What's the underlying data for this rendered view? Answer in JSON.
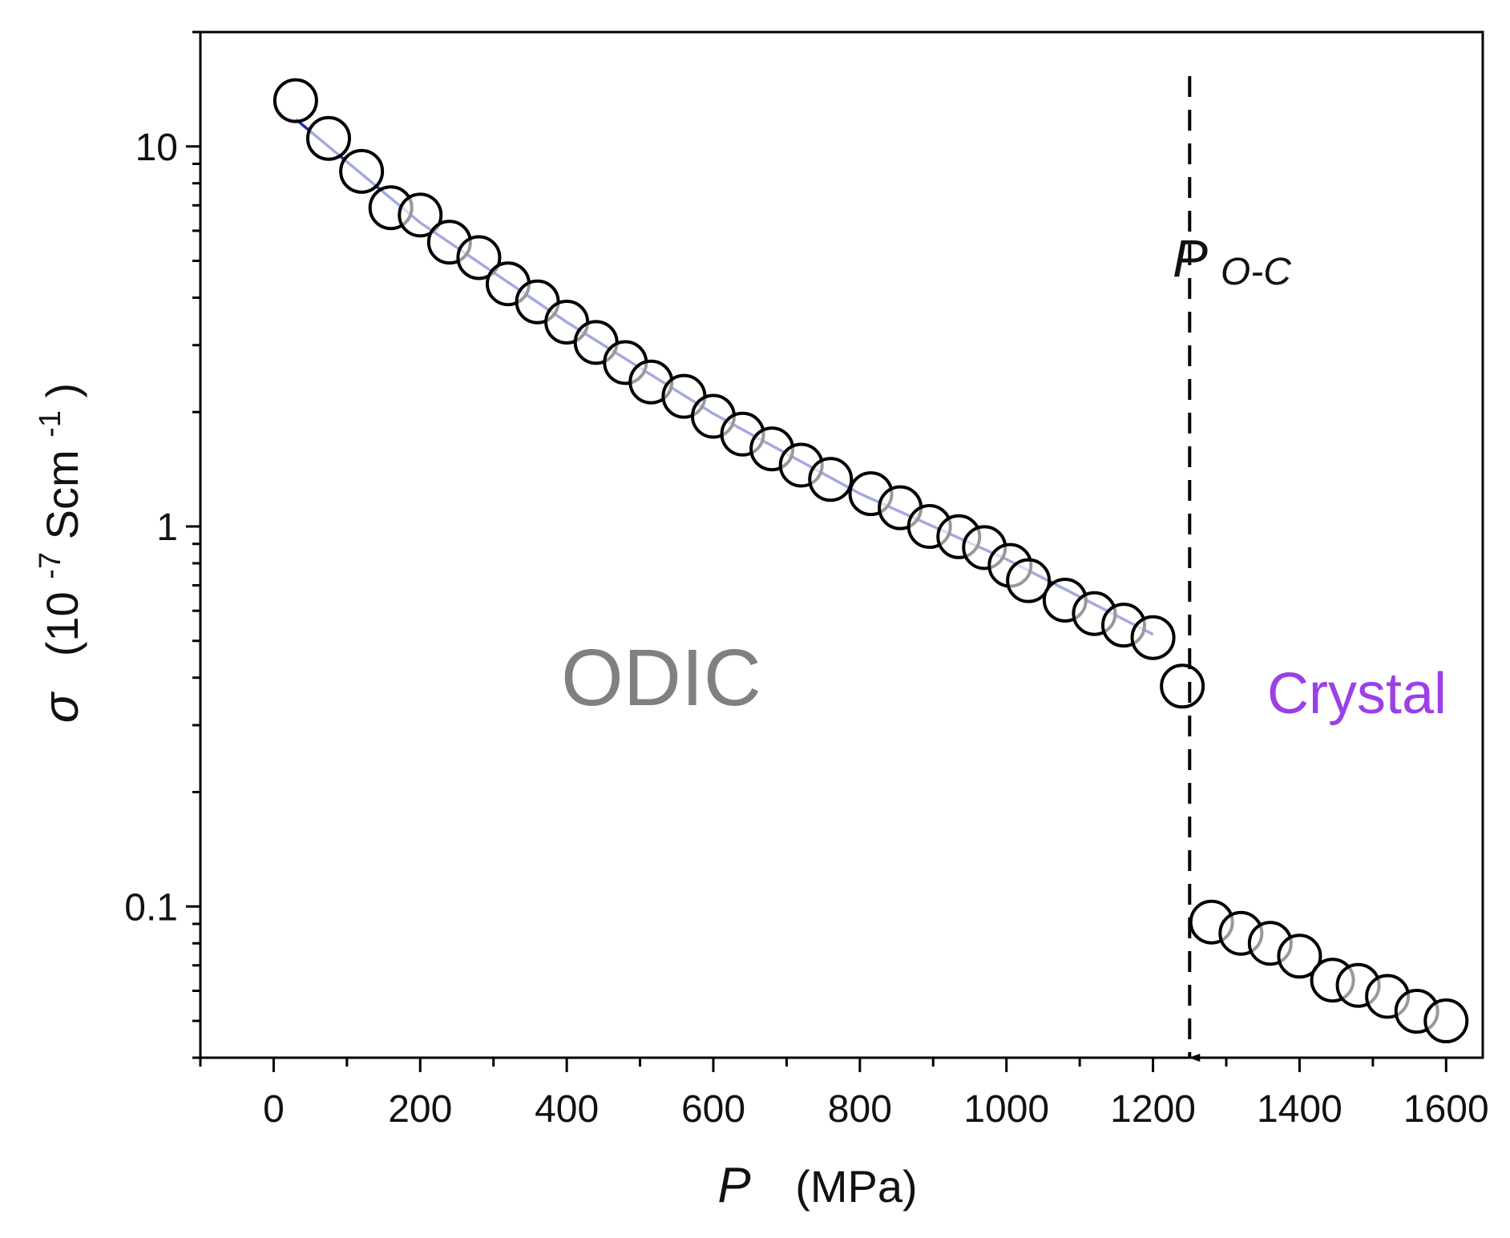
{
  "chart_data": {
    "type": "scatter",
    "title": "",
    "xlabel": {
      "symbol": "P",
      "unit": "(MPa)"
    },
    "ylabel": {
      "symbol": "σ",
      "unit_open": "(10",
      "unit_exp1": "-7",
      "unit_mid": "Scm",
      "unit_exp2": "-1",
      "unit_close": ")"
    },
    "xlim": [
      -100,
      1650
    ],
    "ylim": [
      0.04,
      20
    ],
    "yscale": "log",
    "x_ticks": [
      0,
      200,
      400,
      600,
      800,
      1000,
      1200,
      1400,
      1600
    ],
    "x_tick_labels": [
      "0",
      "200",
      "400",
      "600",
      "800",
      "1000",
      "1200",
      "1400",
      "1600"
    ],
    "y_ticks": [
      0.1,
      1,
      10
    ],
    "y_tick_labels": [
      "0.1",
      "1",
      "10"
    ],
    "grid": false,
    "legend": "none",
    "series": [
      {
        "name": "ODIC data",
        "marker": "open-circle",
        "color": "#000000",
        "x": [
          30,
          75,
          120,
          160,
          200,
          240,
          280,
          320,
          360,
          400,
          440,
          480,
          515,
          560,
          600,
          640,
          680,
          720,
          760,
          815,
          855,
          895,
          935,
          970,
          1005,
          1030,
          1080,
          1120,
          1160,
          1200,
          1240
        ],
        "y": [
          13.2,
          10.5,
          8.6,
          6.9,
          6.6,
          5.6,
          5.1,
          4.35,
          3.9,
          3.45,
          3.05,
          2.7,
          2.4,
          2.2,
          1.95,
          1.75,
          1.6,
          1.45,
          1.33,
          1.22,
          1.12,
          1.0,
          0.94,
          0.88,
          0.79,
          0.72,
          0.64,
          0.59,
          0.55,
          0.51,
          0.38
        ]
      },
      {
        "name": "Crystal data",
        "marker": "open-circle",
        "color": "#000000",
        "x": [
          1280,
          1320,
          1360,
          1400,
          1445,
          1480,
          1520,
          1560,
          1600
        ],
        "y": [
          0.091,
          0.085,
          0.08,
          0.074,
          0.064,
          0.062,
          0.058,
          0.053,
          0.05
        ]
      },
      {
        "name": "fit",
        "type": "line",
        "color": "#1a2ab0",
        "x": [
          30,
          200,
          400,
          600,
          800,
          1000,
          1200
        ],
        "y": [
          11.8,
          6.3,
          3.45,
          1.98,
          1.22,
          0.82,
          0.52
        ]
      }
    ],
    "annotations": {
      "transition": {
        "x": 1250,
        "label_main": "P",
        "label_sub": "O-C",
        "style": "dashed-arrow-down"
      },
      "phase_left": {
        "text": "ODIC",
        "color": "#808080"
      },
      "phase_right": {
        "text": "Crystal",
        "color": "#9b3fe6"
      }
    }
  }
}
